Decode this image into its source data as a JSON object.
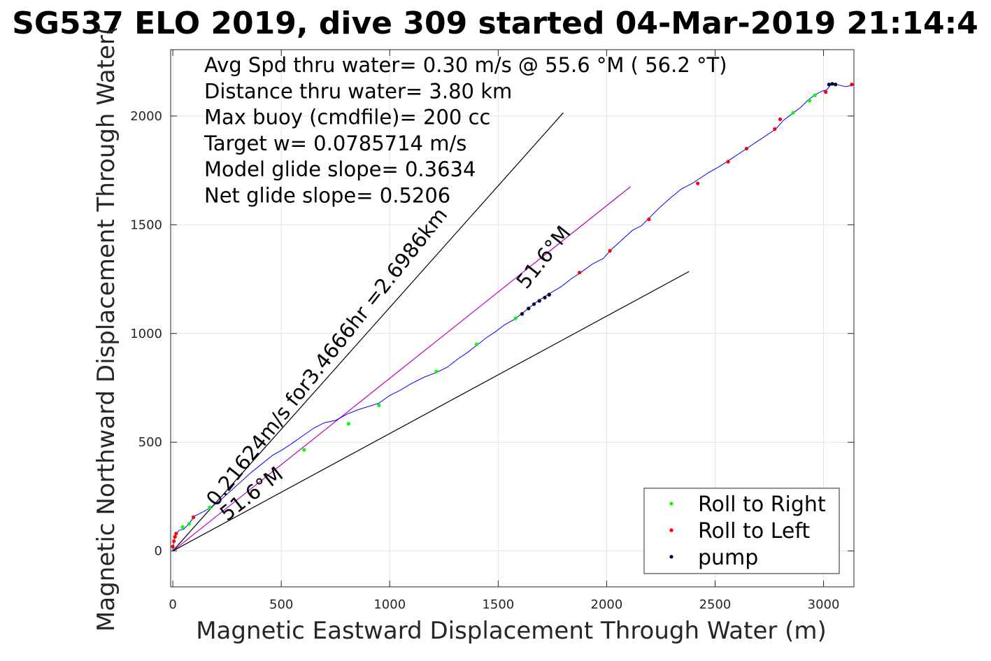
{
  "chart_data": {
    "type": "line",
    "title": "SG537 ELO 2019, dive 309 started 04-Mar-2019 21:14:4",
    "xlabel": "Magnetic Eastward Displacement Through Water (m)",
    "ylabel": "Magnetic Northward Displacement Through Water(",
    "xlim": [
      -10,
      3140
    ],
    "ylim": [
      -165,
      2305
    ],
    "xticks": [
      0,
      500,
      1000,
      1500,
      2000,
      2500,
      3000
    ],
    "yticks": [
      0,
      500,
      1000,
      1500,
      2000
    ],
    "grid": true,
    "legend_position": "bottom-right",
    "stats": [
      "Avg Spd thru water=  0.30 m/s @  55.6 °M ( 56.2 °T)",
      "Distance thru water=  3.80 km",
      "Max buoy (cmdfile)= 200 cc",
      "Target w= 0.0785714 m/s",
      "Model glide slope= 0.3634",
      "Net glide slope= 0.5206"
    ],
    "annotations": [
      {
        "text": "0.21624m/s for3.4666hr =2.6986km",
        "x": 200,
        "y": 200,
        "angle_deg": 51.6
      },
      {
        "text": "51.6°M",
        "x": 1630,
        "y": 1200,
        "angle_deg": 51.6
      },
      {
        "text": "51.6°M",
        "x": 250,
        "y": 135,
        "angle_deg": 38.0
      }
    ],
    "reference_lines": [
      {
        "name": "upper bound",
        "x": [
          0,
          1800
        ],
        "y": [
          0,
          2015
        ],
        "color": "#000000"
      },
      {
        "name": "heading line",
        "x": [
          0,
          2110
        ],
        "y": [
          0,
          1675
        ],
        "color": "#c000c0"
      },
      {
        "name": "lower bound",
        "x": [
          0,
          2380
        ],
        "y": [
          0,
          1285
        ],
        "color": "#000000"
      }
    ],
    "track": {
      "color": "#0000ff",
      "x": [
        0,
        5,
        15,
        30,
        50,
        70,
        85,
        100,
        140,
        175,
        215,
        260,
        310,
        360,
        410,
        460,
        505,
        550,
        600,
        650,
        700,
        750,
        805,
        855,
        905,
        950,
        1000,
        1050,
        1100,
        1160,
        1215,
        1265,
        1310,
        1355,
        1400,
        1445,
        1490,
        1530,
        1575,
        1620,
        1670,
        1730,
        1790,
        1835,
        1880,
        1935,
        1985,
        2020,
        2070,
        2120,
        2160,
        2195,
        2240,
        2290,
        2345,
        2395,
        2425,
        2470,
        2515,
        2555,
        2600,
        2645,
        2690,
        2735,
        2780,
        2815,
        2855,
        2895,
        2930,
        2965,
        2995,
        3015,
        3030,
        3045,
        3060,
        3080,
        3100,
        3120,
        3140
      ],
      "y": [
        0,
        50,
        80,
        95,
        100,
        120,
        140,
        160,
        180,
        200,
        230,
        270,
        315,
        360,
        400,
        440,
        465,
        495,
        530,
        565,
        590,
        600,
        630,
        650,
        665,
        680,
        715,
        740,
        770,
        800,
        820,
        845,
        880,
        910,
        945,
        980,
        1010,
        1040,
        1065,
        1100,
        1140,
        1180,
        1215,
        1250,
        1280,
        1320,
        1345,
        1385,
        1430,
        1475,
        1495,
        1530,
        1575,
        1620,
        1665,
        1690,
        1710,
        1740,
        1765,
        1790,
        1820,
        1850,
        1880,
        1910,
        1940,
        1980,
        2010,
        2040,
        2075,
        2100,
        2115,
        2120,
        2140,
        2150,
        2145,
        2140,
        2135,
        2138,
        2145
      ]
    },
    "series": [
      {
        "name": "Roll to Right",
        "color": "#00ff00",
        "x": [
          45,
          75,
          170,
          605,
          810,
          950,
          1215,
          1400,
          1580,
          2860,
          2935,
          2960
        ],
        "y": [
          110,
          125,
          200,
          465,
          585,
          670,
          825,
          950,
          1070,
          2015,
          2070,
          2095
        ]
      },
      {
        "name": "Roll to Left",
        "color": "#ff0000",
        "x": [
          0,
          5,
          10,
          15,
          95,
          1735,
          1875,
          2015,
          2195,
          2420,
          2560,
          2645,
          2775,
          2800,
          3010,
          3130
        ],
        "y": [
          20,
          45,
          65,
          80,
          155,
          1180,
          1280,
          1380,
          1525,
          1690,
          1790,
          1850,
          1940,
          1985,
          2110,
          2145
        ]
      },
      {
        "name": "pump",
        "color": "#00003a",
        "x": [
          1610,
          1640,
          1665,
          1690,
          1715,
          1735,
          3025,
          3040,
          3055
        ],
        "y": [
          1090,
          1115,
          1135,
          1150,
          1165,
          1178,
          2145,
          2148,
          2145
        ]
      }
    ]
  }
}
